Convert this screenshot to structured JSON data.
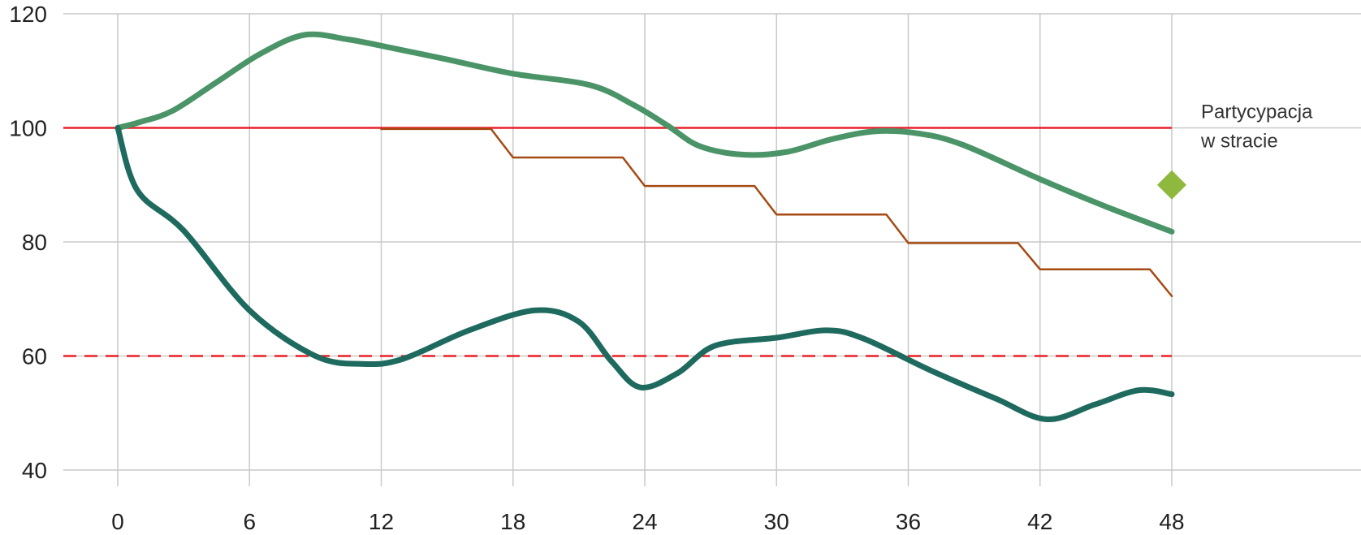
{
  "chart_data": {
    "type": "line",
    "title": "",
    "xlabel": "",
    "ylabel": "",
    "xlim": [
      0,
      48
    ],
    "ylim": [
      40,
      120
    ],
    "x_ticks": [
      "0",
      "6",
      "12",
      "18",
      "24",
      "30",
      "36",
      "42",
      "48"
    ],
    "y_ticks": [
      "40",
      "60",
      "80",
      "100",
      "120"
    ],
    "grid": true,
    "reference_lines": [
      {
        "y": 100,
        "style": "solid",
        "color": "#e8202a"
      },
      {
        "y": 60,
        "style": "dashed",
        "color": "#e8202a"
      }
    ],
    "series": [
      {
        "color": "#4a9468",
        "points": [
          [
            0,
            100
          ],
          [
            1,
            101
          ],
          [
            2.5,
            103
          ],
          [
            4.5,
            108
          ],
          [
            6.5,
            113
          ],
          [
            8.5,
            116.3
          ],
          [
            10.5,
            115.5
          ],
          [
            12.5,
            114
          ],
          [
            15,
            112
          ],
          [
            18,
            109.5
          ],
          [
            21.5,
            107.5
          ],
          [
            23.5,
            104
          ],
          [
            25,
            100.5
          ],
          [
            26.5,
            96.8
          ],
          [
            28.5,
            95.3
          ],
          [
            30.5,
            95.8
          ],
          [
            32.5,
            98
          ],
          [
            34.5,
            99.4
          ],
          [
            36.5,
            99
          ],
          [
            38.5,
            97
          ],
          [
            42,
            91
          ],
          [
            45,
            86.2
          ],
          [
            48,
            81.8
          ]
        ]
      },
      {
        "color": "#1e6a5e",
        "points": [
          [
            0,
            100
          ],
          [
            0.9,
            89
          ],
          [
            3,
            82
          ],
          [
            6,
            68
          ],
          [
            9,
            60
          ],
          [
            11.2,
            58.6
          ],
          [
            13,
            59.5
          ],
          [
            16,
            64.5
          ],
          [
            19,
            68
          ],
          [
            21,
            66
          ],
          [
            22.5,
            59
          ],
          [
            23.8,
            54.5
          ],
          [
            25.5,
            57
          ],
          [
            27.2,
            61.8
          ],
          [
            30,
            63.2
          ],
          [
            32.3,
            64.5
          ],
          [
            34,
            63
          ],
          [
            37,
            57.5
          ],
          [
            40,
            52.5
          ],
          [
            42.3,
            48.9
          ],
          [
            44.5,
            51.5
          ],
          [
            46.5,
            54
          ],
          [
            48,
            53.3
          ]
        ]
      },
      {
        "color": "#a54a12",
        "shape": "step",
        "points": [
          [
            12,
            99.8
          ],
          [
            17,
            99.8
          ],
          [
            18,
            94.8
          ],
          [
            23,
            94.8
          ],
          [
            24,
            89.8
          ],
          [
            29,
            89.8
          ],
          [
            30,
            84.8
          ],
          [
            35,
            84.8
          ],
          [
            36,
            79.8
          ],
          [
            41,
            79.8
          ],
          [
            42,
            75.2
          ],
          [
            47,
            75.2
          ],
          [
            48,
            70.5
          ]
        ]
      }
    ],
    "marker": {
      "x": 48,
      "y": 90,
      "shape": "diamond",
      "color": "#8fb93e"
    },
    "annotation": {
      "lines": [
        "Partycypacja",
        "w stracie"
      ],
      "x": 48,
      "y": 100
    }
  }
}
